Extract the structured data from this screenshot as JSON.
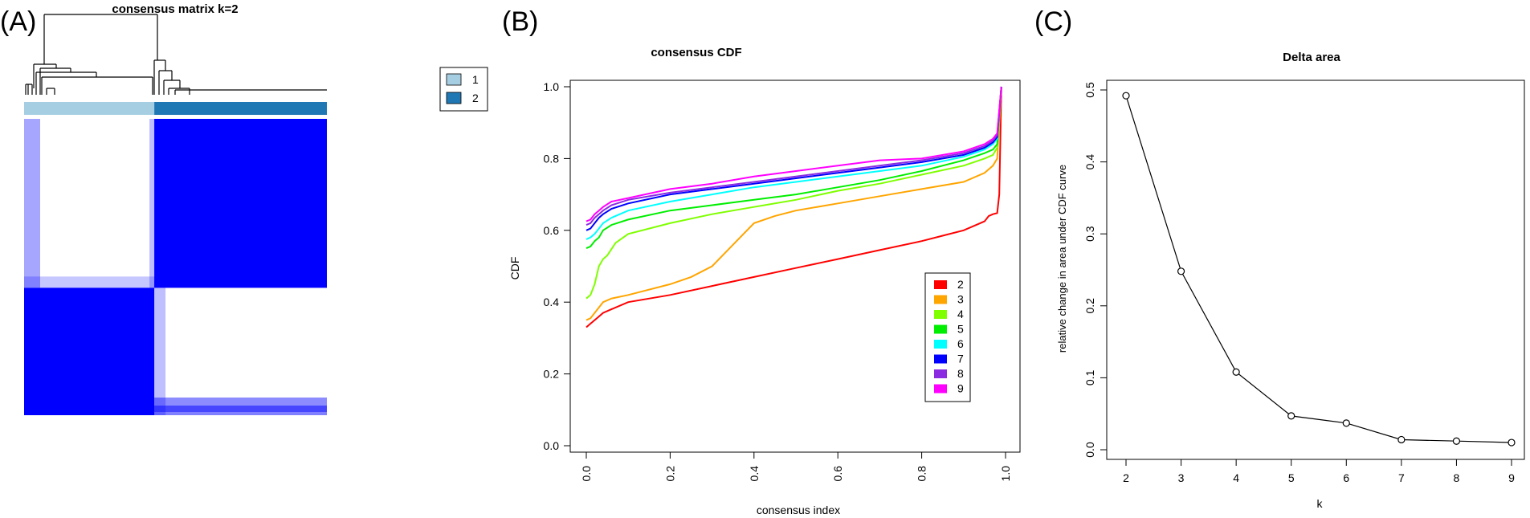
{
  "panel_labels": {
    "a": "(A)",
    "b": "(B)",
    "c": "(C)"
  },
  "colors": {
    "matrix_blue": "#0000ff",
    "cluster1": "#a6cee3",
    "cluster2": "#1f78b4"
  },
  "chart_data": [
    {
      "type": "heatmap",
      "title": "consensus matrix k=2",
      "legend": {
        "position": "top-right",
        "entries": [
          "1",
          "2"
        ],
        "colors": [
          "#a6cee3",
          "#1f78b4"
        ]
      },
      "clusters": [
        {
          "label": "1",
          "fraction": 0.43
        },
        {
          "label": "2",
          "fraction": 0.57
        }
      ]
    },
    {
      "type": "line",
      "title": "consensus CDF",
      "xlabel": "consensus index",
      "ylabel": "CDF",
      "xlim": [
        0,
        1
      ],
      "ylim": [
        0,
        1
      ],
      "xticks": [
        "0.0",
        "0.2",
        "0.4",
        "0.6",
        "0.8",
        "1.0"
      ],
      "yticks": [
        "0.0",
        "0.2",
        "0.4",
        "0.6",
        "0.8",
        "1.0"
      ],
      "legend": {
        "position": "right"
      },
      "series": [
        {
          "name": "2",
          "color": "#ff0000",
          "x": [
            0,
            0.01,
            0.02,
            0.03,
            0.04,
            0.06,
            0.1,
            0.2,
            0.3,
            0.4,
            0.5,
            0.6,
            0.7,
            0.8,
            0.85,
            0.9,
            0.93,
            0.95,
            0.96,
            0.97,
            0.98,
            0.985,
            0.99
          ],
          "y": [
            0.33,
            0.34,
            0.35,
            0.36,
            0.37,
            0.38,
            0.4,
            0.42,
            0.445,
            0.47,
            0.495,
            0.52,
            0.545,
            0.57,
            0.585,
            0.6,
            0.615,
            0.625,
            0.64,
            0.645,
            0.648,
            0.7,
            1.0
          ]
        },
        {
          "name": "3",
          "color": "#ffa500",
          "x": [
            0,
            0.01,
            0.02,
            0.03,
            0.04,
            0.06,
            0.1,
            0.2,
            0.25,
            0.3,
            0.35,
            0.4,
            0.45,
            0.5,
            0.6,
            0.7,
            0.8,
            0.9,
            0.95,
            0.97,
            0.98,
            0.99
          ],
          "y": [
            0.35,
            0.355,
            0.37,
            0.385,
            0.4,
            0.41,
            0.42,
            0.45,
            0.47,
            0.5,
            0.56,
            0.62,
            0.64,
            0.655,
            0.675,
            0.695,
            0.715,
            0.735,
            0.76,
            0.78,
            0.8,
            1.0
          ]
        },
        {
          "name": "4",
          "color": "#7fff00",
          "x": [
            0,
            0.01,
            0.02,
            0.03,
            0.04,
            0.05,
            0.07,
            0.1,
            0.2,
            0.3,
            0.4,
            0.5,
            0.6,
            0.7,
            0.8,
            0.9,
            0.95,
            0.97,
            0.98,
            0.99
          ],
          "y": [
            0.41,
            0.42,
            0.45,
            0.5,
            0.52,
            0.53,
            0.565,
            0.59,
            0.62,
            0.645,
            0.665,
            0.685,
            0.71,
            0.73,
            0.755,
            0.78,
            0.8,
            0.81,
            0.83,
            1.0
          ]
        },
        {
          "name": "5",
          "color": "#00ee00",
          "x": [
            0,
            0.01,
            0.02,
            0.03,
            0.04,
            0.06,
            0.1,
            0.2,
            0.3,
            0.4,
            0.5,
            0.6,
            0.7,
            0.8,
            0.9,
            0.95,
            0.97,
            0.98,
            0.99
          ],
          "y": [
            0.55,
            0.555,
            0.57,
            0.58,
            0.6,
            0.615,
            0.63,
            0.655,
            0.67,
            0.685,
            0.7,
            0.72,
            0.74,
            0.765,
            0.795,
            0.815,
            0.825,
            0.84,
            1.0
          ]
        },
        {
          "name": "6",
          "color": "#00ffff",
          "x": [
            0,
            0.01,
            0.02,
            0.03,
            0.04,
            0.06,
            0.1,
            0.2,
            0.3,
            0.4,
            0.5,
            0.6,
            0.7,
            0.8,
            0.9,
            0.95,
            0.97,
            0.98,
            0.99
          ],
          "y": [
            0.575,
            0.58,
            0.59,
            0.605,
            0.62,
            0.635,
            0.655,
            0.68,
            0.7,
            0.72,
            0.735,
            0.75,
            0.765,
            0.78,
            0.805,
            0.825,
            0.84,
            0.855,
            1.0
          ]
        },
        {
          "name": "7",
          "color": "#0000ff",
          "x": [
            0,
            0.01,
            0.02,
            0.03,
            0.04,
            0.06,
            0.1,
            0.2,
            0.3,
            0.4,
            0.5,
            0.6,
            0.7,
            0.8,
            0.9,
            0.95,
            0.97,
            0.98,
            0.99
          ],
          "y": [
            0.6,
            0.605,
            0.62,
            0.635,
            0.645,
            0.66,
            0.675,
            0.7,
            0.715,
            0.73,
            0.745,
            0.76,
            0.775,
            0.79,
            0.81,
            0.83,
            0.845,
            0.86,
            1.0
          ]
        },
        {
          "name": "8",
          "color": "#8a2be2",
          "x": [
            0,
            0.01,
            0.02,
            0.03,
            0.04,
            0.06,
            0.1,
            0.2,
            0.3,
            0.4,
            0.5,
            0.6,
            0.7,
            0.8,
            0.9,
            0.95,
            0.97,
            0.98,
            0.99
          ],
          "y": [
            0.615,
            0.62,
            0.635,
            0.645,
            0.655,
            0.67,
            0.685,
            0.705,
            0.72,
            0.735,
            0.75,
            0.765,
            0.78,
            0.795,
            0.815,
            0.835,
            0.85,
            0.865,
            1.0
          ]
        },
        {
          "name": "9",
          "color": "#ff00ff",
          "x": [
            0,
            0.01,
            0.02,
            0.03,
            0.04,
            0.06,
            0.1,
            0.2,
            0.3,
            0.4,
            0.5,
            0.6,
            0.7,
            0.8,
            0.9,
            0.95,
            0.97,
            0.98,
            0.99
          ],
          "y": [
            0.625,
            0.63,
            0.645,
            0.655,
            0.665,
            0.68,
            0.69,
            0.715,
            0.73,
            0.75,
            0.765,
            0.78,
            0.795,
            0.8,
            0.82,
            0.84,
            0.855,
            0.87,
            1.0
          ]
        }
      ]
    },
    {
      "type": "line",
      "title": "Delta area",
      "xlabel": "k",
      "ylabel": "relative change in area under CDF curve",
      "xlim": [
        2,
        9
      ],
      "ylim": [
        0,
        0.5
      ],
      "xticks": [
        "2",
        "3",
        "4",
        "5",
        "6",
        "7",
        "8",
        "9"
      ],
      "yticks": [
        "0.0",
        "0.1",
        "0.2",
        "0.3",
        "0.4",
        "0.5"
      ],
      "x": [
        2,
        3,
        4,
        5,
        6,
        7,
        8,
        9
      ],
      "y": [
        0.492,
        0.248,
        0.108,
        0.047,
        0.037,
        0.014,
        0.012,
        0.01
      ]
    }
  ]
}
